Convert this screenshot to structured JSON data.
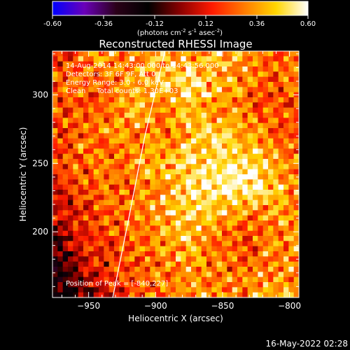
{
  "chart_data": {
    "type": "heatmap",
    "title": "Reconstructed RHESSI Image",
    "xlabel": "Heliocentric X (arcsec)",
    "ylabel": "Heliocentric Y (arcsec)",
    "xlim": [
      -977,
      -793
    ],
    "ylim": [
      152,
      332
    ],
    "xticks": [
      -950,
      -900,
      -850,
      -800
    ],
    "yticks": [
      200,
      250,
      300
    ],
    "colorbar": {
      "range": [
        -0.6,
        0.6
      ],
      "ticks": [
        "-0.60",
        "-0.36",
        "-0.12",
        "0.12",
        "0.36",
        "0.60"
      ],
      "unit_parts": [
        "(photons cm",
        "-2",
        " s",
        "-1",
        " asec",
        "-2",
        ")"
      ],
      "colors": [
        "#0000ff",
        "#6a00b8",
        "#2a0018",
        "#000000",
        "#8a0000",
        "#ff1a00",
        "#ff7a00",
        "#ffd600",
        "#ffffff"
      ]
    },
    "annotations": [
      "14-Aug-2014 14:43:00.000 to 14:43:56.000",
      "Detectors: 3F 6F 9F, Att 0",
      "Energy Range: 3.0 - 6.0 keV",
      "Clean     Total counts: 1.30E+03"
    ],
    "peak_label": "Position of Peak = [-840,227]",
    "peak": {
      "x": -840,
      "y": 227,
      "value": 0.6
    },
    "limb": [
      [
        -932,
        152
      ],
      [
        -920,
        210
      ],
      [
        -908,
        270
      ],
      [
        -893,
        332
      ]
    ],
    "image_values_estimated": {
      "description_levels": "coarse estimate of displayed intensity over a 10x10 grid, rows from top (y=332) to bottom (y=152), columns from left (x=-977) to right (x=-793)",
      "grid": [
        [
          0.1,
          0.25,
          0.35,
          0.3,
          0.4,
          0.35,
          0.45,
          0.4,
          0.3,
          0.25
        ],
        [
          0.2,
          0.3,
          0.25,
          0.35,
          0.45,
          0.5,
          0.4,
          0.3,
          0.25,
          0.3
        ],
        [
          0.25,
          0.2,
          0.3,
          0.4,
          0.35,
          0.45,
          0.35,
          0.3,
          0.2,
          0.25
        ],
        [
          0.15,
          0.25,
          0.35,
          0.3,
          0.3,
          0.4,
          0.45,
          0.35,
          0.3,
          0.2
        ],
        [
          0.2,
          0.3,
          0.25,
          0.35,
          0.4,
          0.45,
          0.5,
          0.55,
          0.4,
          0.3
        ],
        [
          0.1,
          0.2,
          0.3,
          0.25,
          0.35,
          0.5,
          0.55,
          0.6,
          0.45,
          0.35
        ],
        [
          0.05,
          0.15,
          0.25,
          0.3,
          0.4,
          0.45,
          0.4,
          0.3,
          0.35,
          0.3
        ],
        [
          -0.1,
          0.1,
          0.2,
          0.25,
          0.35,
          0.4,
          0.3,
          0.2,
          0.3,
          0.35
        ],
        [
          -0.2,
          0.0,
          0.15,
          0.25,
          0.3,
          0.35,
          0.25,
          0.3,
          0.35,
          0.3
        ],
        [
          -0.25,
          -0.1,
          0.1,
          0.2,
          0.25,
          0.3,
          0.35,
          0.3,
          0.4,
          0.35
        ]
      ]
    }
  },
  "footer_timestamp": "16-May-2022 02:28"
}
